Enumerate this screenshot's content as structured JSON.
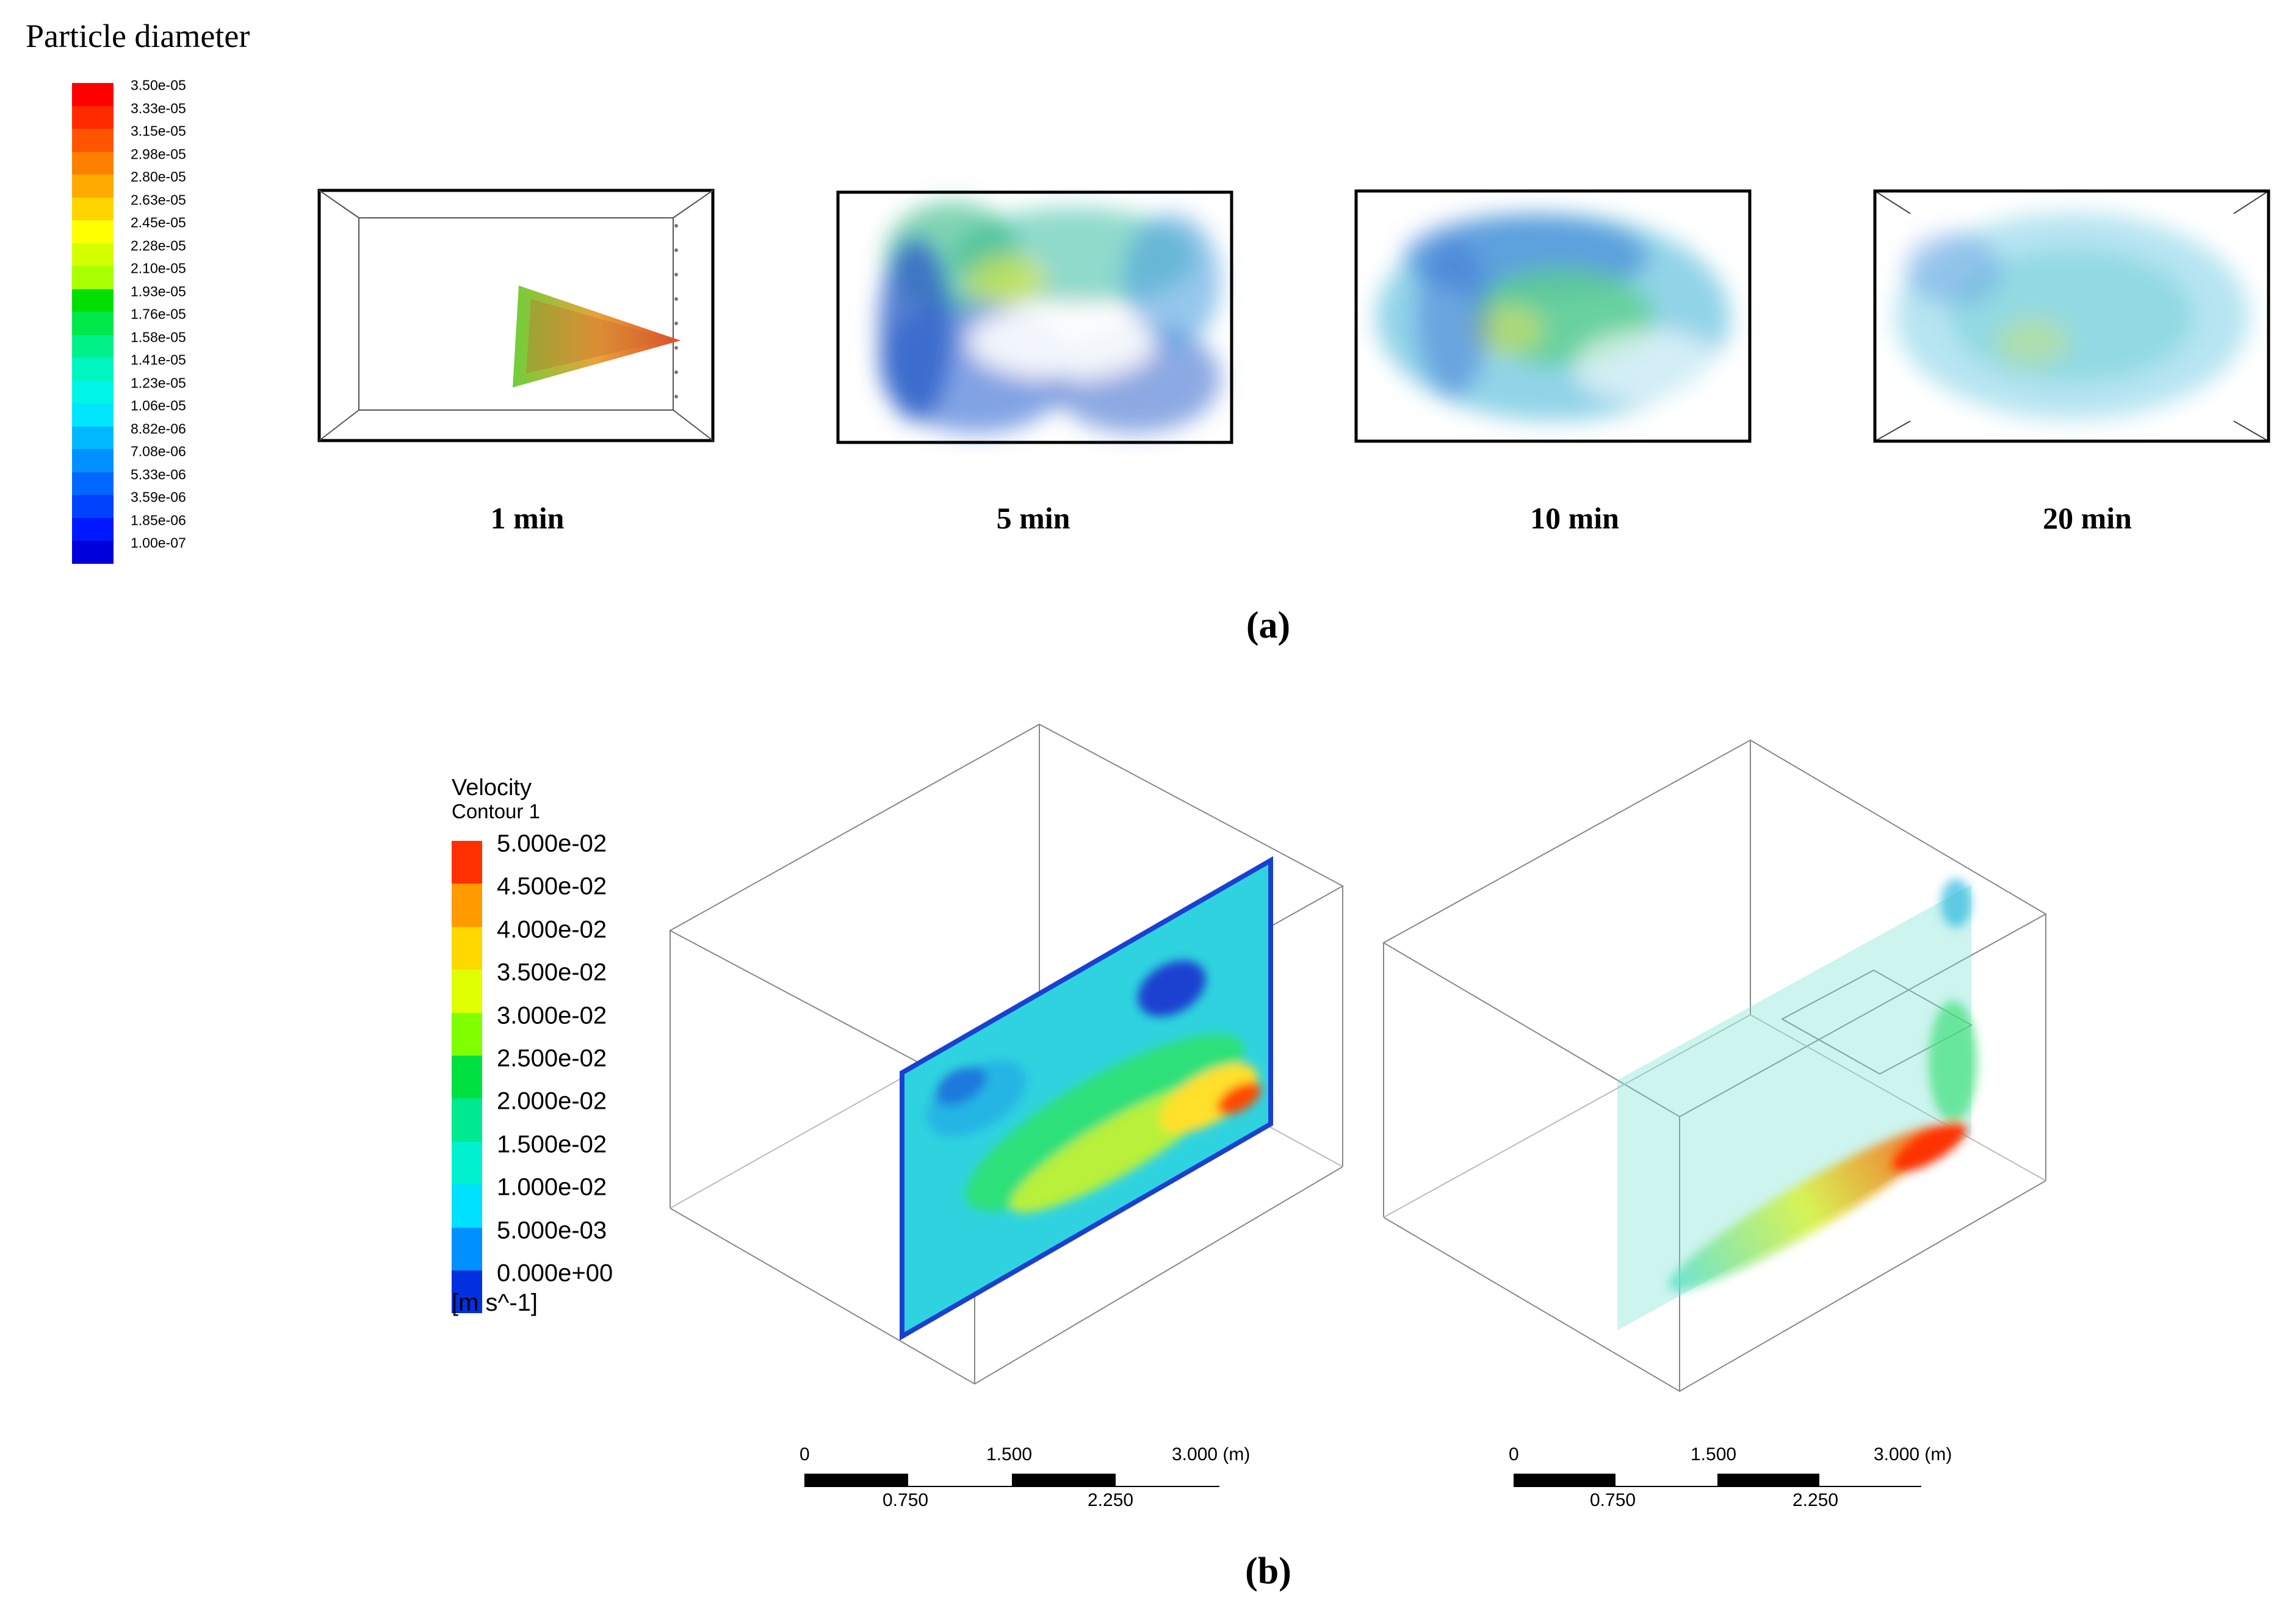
{
  "panel_a": {
    "legend": {
      "title": "Particle diameter",
      "ticks": [
        "3.50e-05",
        "3.33e-05",
        "3.15e-05",
        "2.98e-05",
        "2.80e-05",
        "2.63e-05",
        "2.45e-05",
        "2.28e-05",
        "2.10e-05",
        "1.93e-05",
        "1.76e-05",
        "1.58e-05",
        "1.41e-05",
        "1.23e-05",
        "1.06e-05",
        "8.82e-06",
        "7.08e-06",
        "5.33e-06",
        "3.59e-06",
        "1.85e-06",
        "1.00e-07"
      ],
      "colors": [
        "#ff0000",
        "#ff2a00",
        "#ff5500",
        "#ff7f00",
        "#ffaa00",
        "#ffd400",
        "#ffff00",
        "#d4ff00",
        "#aaff00",
        "#00e000",
        "#00e84a",
        "#00f08a",
        "#00f5c0",
        "#00f5e6",
        "#00e6ff",
        "#00b8ff",
        "#0090ff",
        "#0068ff",
        "#0040ff",
        "#0018ff",
        "#0000dd"
      ]
    },
    "snapshots": [
      {
        "label": "1 min"
      },
      {
        "label": "5 min"
      },
      {
        "label": "10 min"
      },
      {
        "label": "20 min"
      }
    ],
    "caption": "(a)"
  },
  "panel_b": {
    "legend": {
      "title": "Velocity",
      "subtitle": "Contour 1",
      "ticks": [
        "5.000e-02",
        "4.500e-02",
        "4.000e-02",
        "3.500e-02",
        "3.000e-02",
        "2.500e-02",
        "2.000e-02",
        "1.500e-02",
        "1.000e-02",
        "5.000e-03",
        "0.000e+00"
      ],
      "colors": [
        "#ff3000",
        "#ff9a00",
        "#ffd800",
        "#e0ff00",
        "#80ff00",
        "#00e040",
        "#00e890",
        "#00f0d0",
        "#00e0ff",
        "#0090ff",
        "#0030e0"
      ],
      "unit": "[m s^-1]"
    },
    "scale_bars": [
      {
        "top_labels": [
          "0",
          "1.500",
          "3.000  (m)"
        ],
        "bottom_labels": [
          "0.750",
          "2.250"
        ]
      },
      {
        "top_labels": [
          "0",
          "1.500",
          "3.000  (m)"
        ],
        "bottom_labels": [
          "0.750",
          "2.250"
        ]
      }
    ],
    "caption": "(b)"
  }
}
